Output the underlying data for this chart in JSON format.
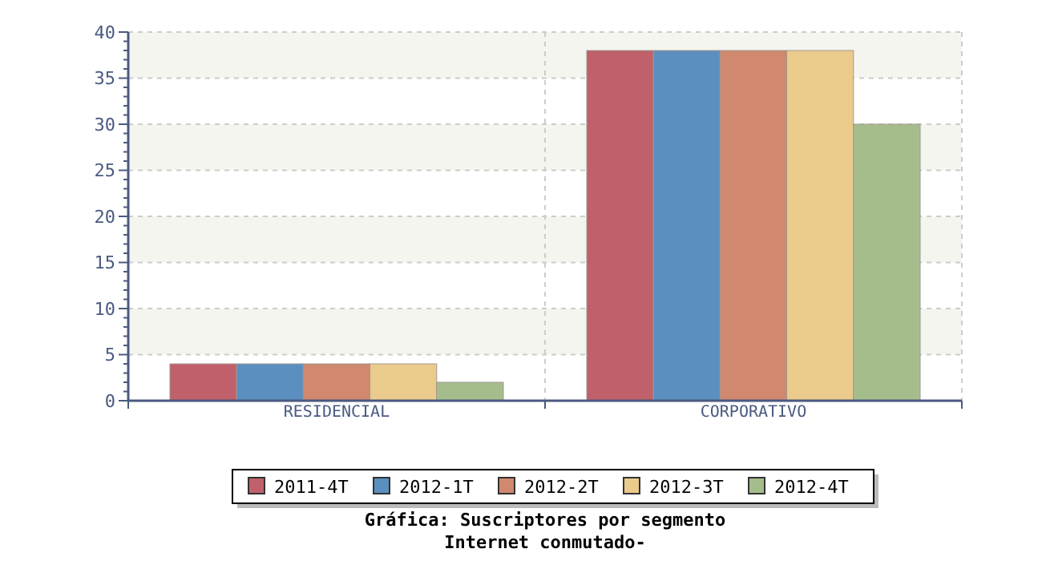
{
  "chart_data": {
    "type": "bar",
    "title": "Gráfica: Suscriptores por segmento",
    "subtitle": "Internet conmutado-",
    "categories": [
      "RESIDENCIAL",
      "CORPORATIVO"
    ],
    "series": [
      {
        "name": "2011-4T",
        "color": "#c0606a",
        "values": [
          4,
          38
        ]
      },
      {
        "name": "2012-1T",
        "color": "#5b8fbf",
        "values": [
          4,
          38
        ]
      },
      {
        "name": "2012-2T",
        "color": "#d0886e",
        "values": [
          4,
          38
        ]
      },
      {
        "name": "2012-3T",
        "color": "#ebcb8b",
        "values": [
          4,
          38
        ]
      },
      {
        "name": "2012-4T",
        "color": "#a5bd8c",
        "values": [
          2,
          30
        ]
      }
    ],
    "ylim": [
      0,
      40
    ],
    "yticks": [
      0,
      5,
      10,
      15,
      20,
      25,
      30,
      35,
      40
    ],
    "grid": true,
    "legend": "bottom"
  }
}
